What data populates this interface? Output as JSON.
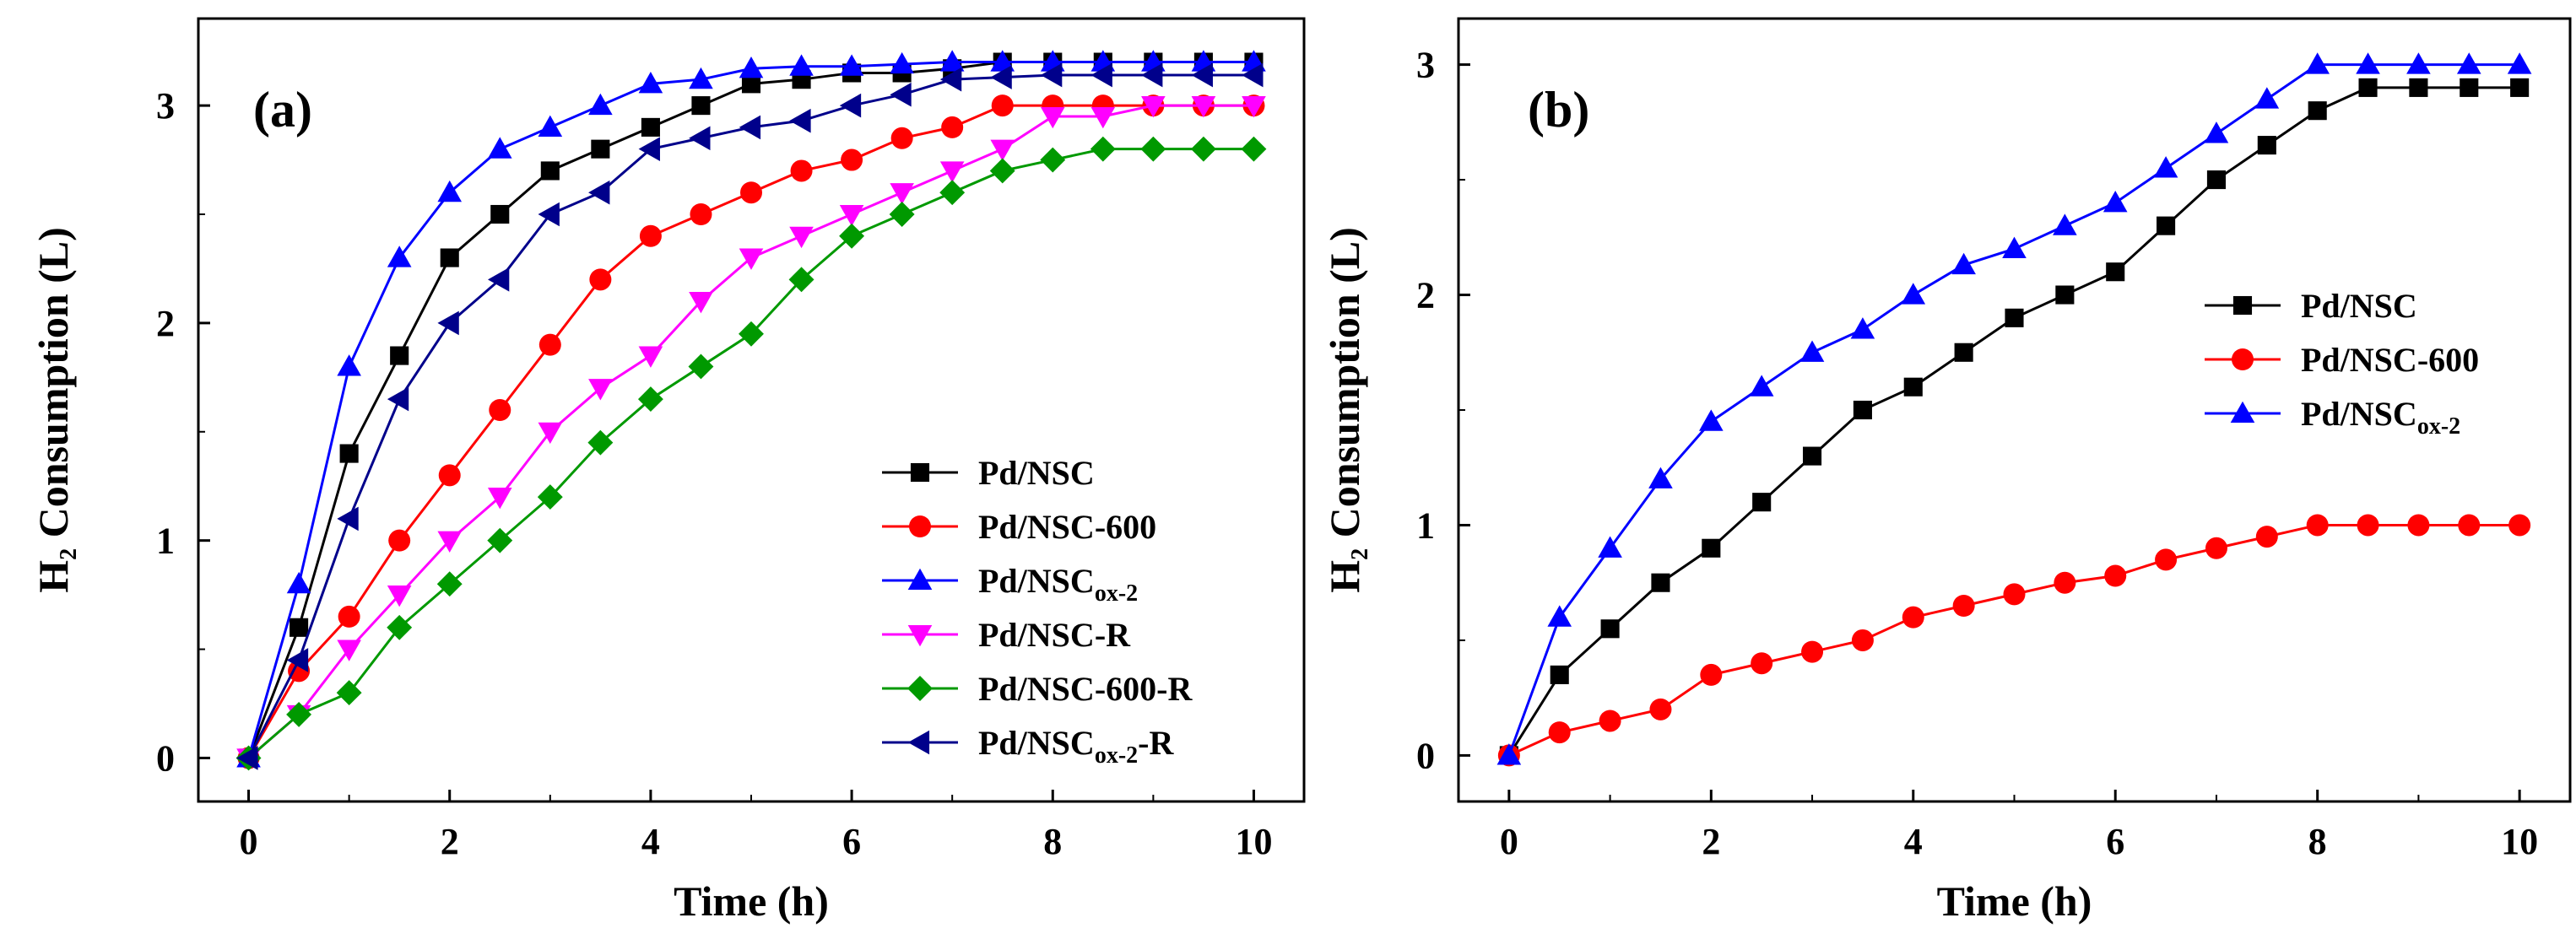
{
  "chart_data": [
    {
      "type": "line",
      "panel_label": "(a)",
      "xlabel": "Time (h)",
      "ylabel": {
        "main": "H",
        "sub": "2",
        "rest": " Consumption (L)"
      },
      "xlim": [
        -0.5,
        10.5
      ],
      "ylim": [
        -0.2,
        3.4
      ],
      "xticks": [
        0,
        2,
        4,
        6,
        8,
        10
      ],
      "yticks": [
        0,
        1,
        2,
        3
      ],
      "legend_position": "right-middle",
      "series": [
        {
          "label": "Pd/NSC",
          "name": "Pd/NSC",
          "sub": "",
          "suffix": "",
          "color": "#000000",
          "marker": "square",
          "x": [
            0,
            0.5,
            1,
            1.5,
            2,
            2.5,
            3,
            3.5,
            4,
            4.5,
            5,
            5.5,
            6,
            6.5,
            7,
            7.5,
            8,
            8.5,
            9,
            9.5,
            10
          ],
          "y": [
            0,
            0.6,
            1.4,
            1.85,
            2.3,
            2.5,
            2.7,
            2.8,
            2.9,
            3.0,
            3.1,
            3.12,
            3.15,
            3.15,
            3.17,
            3.2,
            3.2,
            3.2,
            3.2,
            3.2,
            3.2
          ]
        },
        {
          "label": "Pd/NSC-600",
          "name": "Pd/NSC-600",
          "sub": "",
          "suffix": "",
          "color": "#ff0000",
          "marker": "circle",
          "x": [
            0,
            0.5,
            1,
            1.5,
            2,
            2.5,
            3,
            3.5,
            4,
            4.5,
            5,
            5.5,
            6,
            6.5,
            7,
            7.5,
            8,
            8.5,
            9,
            9.5,
            10
          ],
          "y": [
            0,
            0.4,
            0.65,
            1.0,
            1.3,
            1.6,
            1.9,
            2.2,
            2.4,
            2.5,
            2.6,
            2.7,
            2.75,
            2.85,
            2.9,
            3.0,
            3.0,
            3.0,
            3.0,
            3.0,
            3.0
          ]
        },
        {
          "label": "Pd/NSCox-2",
          "name": "Pd/NSC",
          "sub": "ox-2",
          "suffix": "",
          "color": "#0000ff",
          "marker": "triangle-up",
          "x": [
            0,
            0.5,
            1,
            1.5,
            2,
            2.5,
            3,
            3.5,
            4,
            4.5,
            5,
            5.5,
            6,
            6.5,
            7,
            7.5,
            8,
            8.5,
            9,
            9.5,
            10
          ],
          "y": [
            0,
            0.8,
            1.8,
            2.3,
            2.6,
            2.8,
            2.9,
            3.0,
            3.1,
            3.12,
            3.17,
            3.18,
            3.18,
            3.19,
            3.2,
            3.2,
            3.2,
            3.2,
            3.2,
            3.2,
            3.2
          ]
        },
        {
          "label": "Pd/NSC-R",
          "name": "Pd/NSC-R",
          "sub": "",
          "suffix": "",
          "color": "#ff00ff",
          "marker": "triangle-down",
          "x": [
            0,
            0.5,
            1,
            1.5,
            2,
            2.5,
            3,
            3.5,
            4,
            4.5,
            5,
            5.5,
            6,
            6.5,
            7,
            7.5,
            8,
            8.5,
            9,
            9.5,
            10
          ],
          "y": [
            0,
            0.2,
            0.5,
            0.75,
            1.0,
            1.2,
            1.5,
            1.7,
            1.85,
            2.1,
            2.3,
            2.4,
            2.5,
            2.6,
            2.7,
            2.8,
            2.95,
            2.95,
            3.0,
            3.0,
            3.0
          ]
        },
        {
          "label": "Pd/NSC-600-R",
          "name": "Pd/NSC-600-R",
          "sub": "",
          "suffix": "",
          "color": "#009900",
          "marker": "diamond",
          "x": [
            0,
            0.5,
            1,
            1.5,
            2,
            2.5,
            3,
            3.5,
            4,
            4.5,
            5,
            5.5,
            6,
            6.5,
            7,
            7.5,
            8,
            8.5,
            9,
            9.5,
            10
          ],
          "y": [
            0,
            0.2,
            0.3,
            0.6,
            0.8,
            1.0,
            1.2,
            1.45,
            1.65,
            1.8,
            1.95,
            2.2,
            2.4,
            2.5,
            2.6,
            2.7,
            2.75,
            2.8,
            2.8,
            2.8,
            2.8
          ]
        },
        {
          "label": "Pd/NSCox-2-R",
          "name": "Pd/NSC",
          "sub": "ox-2",
          "suffix": "-R",
          "color": "#00008b",
          "marker": "triangle-left",
          "x": [
            0,
            0.5,
            1,
            1.5,
            2,
            2.5,
            3,
            3.5,
            4,
            4.5,
            5,
            5.5,
            6,
            6.5,
            7,
            7.5,
            8,
            8.5,
            9,
            9.5,
            10
          ],
          "y": [
            0,
            0.45,
            1.1,
            1.65,
            2.0,
            2.2,
            2.5,
            2.6,
            2.8,
            2.85,
            2.9,
            2.93,
            3.0,
            3.05,
            3.12,
            3.13,
            3.14,
            3.14,
            3.14,
            3.14,
            3.14
          ]
        }
      ]
    },
    {
      "type": "line",
      "panel_label": "(b)",
      "xlabel": "Time (h)",
      "ylabel": {
        "main": "H",
        "sub": "2",
        "rest": " Consumption (L)"
      },
      "xlim": [
        -0.5,
        10.5
      ],
      "ylim": [
        -0.2,
        3.2
      ],
      "xticks": [
        0,
        2,
        4,
        6,
        8,
        10
      ],
      "yticks": [
        0,
        1,
        2,
        3
      ],
      "legend_position": "right-middle",
      "series": [
        {
          "label": "Pd/NSC",
          "name": "Pd/NSC",
          "sub": "",
          "suffix": "",
          "color": "#000000",
          "marker": "square",
          "x": [
            0,
            0.5,
            1,
            1.5,
            2,
            2.5,
            3,
            3.5,
            4,
            4.5,
            5,
            5.5,
            6,
            6.5,
            7,
            7.5,
            8,
            8.5,
            9,
            9.5,
            10
          ],
          "y": [
            0,
            0.35,
            0.55,
            0.75,
            0.9,
            1.1,
            1.3,
            1.5,
            1.6,
            1.75,
            1.9,
            2.0,
            2.1,
            2.3,
            2.5,
            2.65,
            2.8,
            2.9,
            2.9,
            2.9,
            2.9
          ]
        },
        {
          "label": "Pd/NSC-600",
          "name": "Pd/NSC-600",
          "sub": "",
          "suffix": "",
          "color": "#ff0000",
          "marker": "circle",
          "x": [
            0,
            0.5,
            1,
            1.5,
            2,
            2.5,
            3,
            3.5,
            4,
            4.5,
            5,
            5.5,
            6,
            6.5,
            7,
            7.5,
            8,
            8.5,
            9,
            9.5,
            10
          ],
          "y": [
            0,
            0.1,
            0.15,
            0.2,
            0.35,
            0.4,
            0.45,
            0.5,
            0.6,
            0.65,
            0.7,
            0.75,
            0.78,
            0.85,
            0.9,
            0.95,
            1.0,
            1.0,
            1.0,
            1.0,
            1.0
          ]
        },
        {
          "label": "Pd/NSCox-2",
          "name": "Pd/NSC",
          "sub": "ox-2",
          "suffix": "",
          "color": "#0000ff",
          "marker": "triangle-up",
          "x": [
            0,
            0.5,
            1,
            1.5,
            2,
            2.5,
            3,
            3.5,
            4,
            4.5,
            5,
            5.5,
            6,
            6.5,
            7,
            7.5,
            8,
            8.5,
            9,
            9.5,
            10
          ],
          "y": [
            0,
            0.6,
            0.9,
            1.2,
            1.45,
            1.6,
            1.75,
            1.85,
            2.0,
            2.13,
            2.2,
            2.3,
            2.4,
            2.55,
            2.7,
            2.85,
            3.0,
            3.0,
            3.0,
            3.0,
            3.0
          ]
        }
      ]
    }
  ]
}
